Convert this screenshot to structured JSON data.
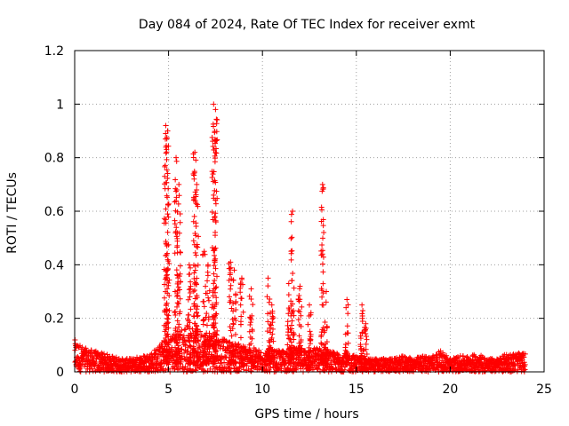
{
  "chart_data": {
    "type": "scatter",
    "title": "Day 084 of 2024, Rate Of TEC Index for receiver exmt",
    "xlabel": "GPS time / hours",
    "ylabel": "ROTI / TECUs",
    "xlim": [
      0,
      25
    ],
    "ylim": [
      0,
      1.2
    ],
    "x_ticks": [
      0,
      5,
      10,
      15,
      20,
      25
    ],
    "x_tick_labels": [
      "0",
      "5",
      "10",
      "15",
      "20",
      "25"
    ],
    "y_ticks": [
      0,
      0.2,
      0.4,
      0.6,
      0.8,
      1.0,
      1.2
    ],
    "y_tick_labels": [
      "0",
      "0.2",
      "0.4",
      "0.6",
      "0.8",
      "1",
      "1.2"
    ],
    "grid": true,
    "marker": "+",
    "color": "#ff0000",
    "background_band_max": [
      [
        0.0,
        0.12
      ],
      [
        0.5,
        0.09
      ],
      [
        1.0,
        0.08
      ],
      [
        1.5,
        0.07
      ],
      [
        2.0,
        0.06
      ],
      [
        2.5,
        0.05
      ],
      [
        3.0,
        0.05
      ],
      [
        3.5,
        0.06
      ],
      [
        4.0,
        0.07
      ],
      [
        4.5,
        0.1
      ],
      [
        5.0,
        0.14
      ],
      [
        5.5,
        0.15
      ],
      [
        6.0,
        0.18
      ],
      [
        6.5,
        0.16
      ],
      [
        7.0,
        0.15
      ],
      [
        7.5,
        0.14
      ],
      [
        8.0,
        0.12
      ],
      [
        8.5,
        0.11
      ],
      [
        9.0,
        0.1
      ],
      [
        9.5,
        0.09
      ],
      [
        10.0,
        0.08
      ],
      [
        10.5,
        0.08
      ],
      [
        11.0,
        0.08
      ],
      [
        11.5,
        0.09
      ],
      [
        12.0,
        0.09
      ],
      [
        12.5,
        0.09
      ],
      [
        13.0,
        0.09
      ],
      [
        13.5,
        0.08
      ],
      [
        14.0,
        0.07
      ],
      [
        14.5,
        0.07
      ],
      [
        15.0,
        0.06
      ],
      [
        15.5,
        0.05
      ],
      [
        16.0,
        0.05
      ],
      [
        16.5,
        0.05
      ],
      [
        17.0,
        0.05
      ],
      [
        17.5,
        0.06
      ],
      [
        18.0,
        0.05
      ],
      [
        18.5,
        0.06
      ],
      [
        19.0,
        0.06
      ],
      [
        19.5,
        0.08
      ],
      [
        20.0,
        0.05
      ],
      [
        20.5,
        0.06
      ],
      [
        21.0,
        0.06
      ],
      [
        21.5,
        0.07
      ],
      [
        22.0,
        0.05
      ],
      [
        22.5,
        0.05
      ],
      [
        23.0,
        0.07
      ],
      [
        23.5,
        0.07
      ],
      [
        24.0,
        0.07
      ]
    ],
    "spikes": [
      {
        "x": 4.85,
        "peak": 0.92
      },
      {
        "x": 4.95,
        "peak": 0.9
      },
      {
        "x": 5.4,
        "peak": 0.8
      },
      {
        "x": 5.55,
        "peak": 0.7
      },
      {
        "x": 6.1,
        "peak": 0.4
      },
      {
        "x": 6.4,
        "peak": 0.82
      },
      {
        "x": 6.5,
        "peak": 0.7
      },
      {
        "x": 6.9,
        "peak": 0.45
      },
      {
        "x": 7.1,
        "peak": 0.4
      },
      {
        "x": 7.4,
        "peak": 1.0
      },
      {
        "x": 7.5,
        "peak": 0.98
      },
      {
        "x": 8.3,
        "peak": 0.41
      },
      {
        "x": 8.5,
        "peak": 0.38
      },
      {
        "x": 8.9,
        "peak": 0.35
      },
      {
        "x": 9.4,
        "peak": 0.31
      },
      {
        "x": 10.3,
        "peak": 0.35
      },
      {
        "x": 10.5,
        "peak": 0.25
      },
      {
        "x": 11.4,
        "peak": 0.33
      },
      {
        "x": 11.6,
        "peak": 0.6
      },
      {
        "x": 12.0,
        "peak": 0.32
      },
      {
        "x": 12.5,
        "peak": 0.25
      },
      {
        "x": 13.2,
        "peak": 0.7
      },
      {
        "x": 13.4,
        "peak": 0.3
      },
      {
        "x": 14.5,
        "peak": 0.27
      },
      {
        "x": 15.3,
        "peak": 0.25
      },
      {
        "x": 15.5,
        "peak": 0.18
      }
    ]
  }
}
